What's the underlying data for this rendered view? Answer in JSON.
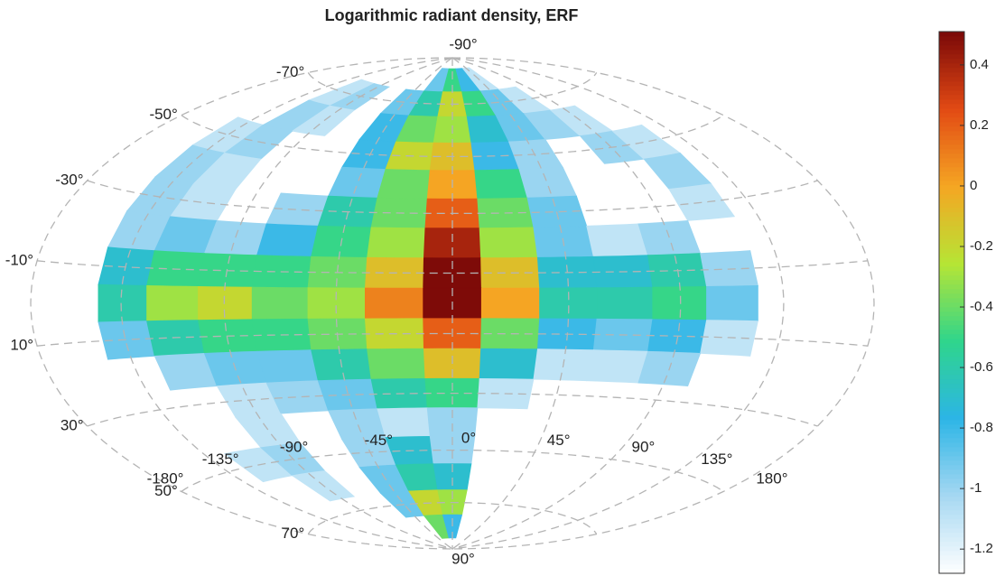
{
  "chart_data": {
    "type": "contour",
    "title": "Logarithmic radiant density, ERF",
    "projection": "hammer",
    "x": [
      -135,
      -112.5,
      -90,
      -67.5,
      -45,
      -22.5,
      0,
      22.5,
      45,
      67.5,
      90,
      112.5
    ],
    "y": [
      -80,
      -70,
      -60,
      -50,
      -40,
      -30,
      -20,
      -10,
      0,
      10,
      20,
      30,
      40,
      50,
      60,
      70,
      80
    ],
    "z": [
      [
        null,
        null,
        null,
        null,
        null,
        -0.9,
        -0.5,
        -0.8,
        -1.1,
        null,
        null,
        null
      ],
      [
        null,
        -1.1,
        -1.0,
        null,
        -0.9,
        -0.6,
        -0.2,
        -0.5,
        -0.9,
        -1.1,
        null,
        null
      ],
      [
        null,
        -1.0,
        -1.1,
        null,
        -0.8,
        -0.4,
        -0.3,
        -0.7,
        -0.9,
        -1.0,
        -1.1,
        null
      ],
      [
        -1.1,
        -1.0,
        null,
        null,
        -0.8,
        -0.2,
        -0.1,
        -0.8,
        -1.0,
        null,
        -1.0,
        -1.1
      ],
      [
        -1.0,
        -1.1,
        null,
        null,
        -0.9,
        -0.4,
        0.0,
        -0.5,
        -1.0,
        null,
        null,
        -1.0
      ],
      [
        -1.0,
        -1.1,
        null,
        -1.0,
        -0.6,
        -0.4,
        0.2,
        -0.4,
        -0.9,
        null,
        null,
        -1.1
      ],
      [
        -1.0,
        -0.9,
        -1.0,
        -0.8,
        -0.5,
        -0.3,
        0.4,
        -0.3,
        -0.9,
        -1.1,
        -1.0,
        null
      ],
      [
        -0.7,
        -0.5,
        -0.5,
        -0.5,
        -0.4,
        -0.1,
        0.5,
        -0.1,
        -0.7,
        -0.7,
        -0.6,
        -1.0
      ],
      [
        -0.6,
        -0.3,
        -0.2,
        -0.4,
        -0.3,
        0.1,
        0.5,
        0.0,
        -0.6,
        -0.6,
        -0.5,
        -0.9
      ],
      [
        -0.9,
        -0.6,
        -0.5,
        -0.5,
        -0.4,
        -0.2,
        0.2,
        -0.4,
        -0.8,
        -0.9,
        -0.8,
        -1.1
      ],
      [
        null,
        -1.0,
        -0.9,
        -0.9,
        -0.6,
        -0.4,
        -0.1,
        -0.7,
        -1.1,
        -1.1,
        -1.0,
        null
      ],
      [
        null,
        null,
        -1.1,
        -1.0,
        -0.9,
        -0.6,
        -0.5,
        -1.1,
        null,
        null,
        null,
        null
      ],
      [
        null,
        null,
        -1.1,
        null,
        -1.0,
        -1.1,
        -1.0,
        null,
        null,
        null,
        null,
        null
      ],
      [
        null,
        -1.1,
        -1.0,
        null,
        -1.0,
        -0.7,
        -1.0,
        null,
        null,
        null,
        null,
        null
      ],
      [
        null,
        null,
        -1.1,
        null,
        -0.9,
        -0.6,
        -0.7,
        null,
        null,
        null,
        null,
        null
      ],
      [
        null,
        null,
        null,
        null,
        -0.9,
        -0.2,
        -0.3,
        null,
        null,
        null,
        null,
        null
      ],
      [
        null,
        null,
        null,
        null,
        null,
        -0.4,
        -0.8,
        null,
        null,
        null,
        null,
        null
      ]
    ],
    "xlim": [
      -180,
      180
    ],
    "ylim": [
      -90,
      90
    ],
    "xticks": [
      {
        "value": -180,
        "label": "-180°"
      },
      {
        "value": -135,
        "label": "-135°"
      },
      {
        "value": -90,
        "label": "-90°"
      },
      {
        "value": -45,
        "label": "-45°"
      },
      {
        "value": 0,
        "label": "0°"
      },
      {
        "value": 45,
        "label": "45°"
      },
      {
        "value": 90,
        "label": "90°"
      },
      {
        "value": 135,
        "label": "135°"
      },
      {
        "value": 180,
        "label": "180°"
      }
    ],
    "yticks": [
      {
        "value": -90,
        "label": "-90°"
      },
      {
        "value": -70,
        "label": "-70°"
      },
      {
        "value": -50,
        "label": "-50°"
      },
      {
        "value": -30,
        "label": "-30°"
      },
      {
        "value": -10,
        "label": "-10°"
      },
      {
        "value": 10,
        "label": "10°"
      },
      {
        "value": 30,
        "label": "30°"
      },
      {
        "value": 50,
        "label": "50°"
      },
      {
        "value": 70,
        "label": "70°"
      },
      {
        "value": 90,
        "label": "90°"
      }
    ],
    "clim": [
      -1.28,
      0.51
    ],
    "cticks": [
      0.4,
      0.2,
      0,
      -0.2,
      -0.4,
      -0.6,
      -0.8,
      -1,
      -1.2
    ],
    "colormap": [
      "#ffffff",
      "#a6d8f2",
      "#2cb5e6",
      "#2fd58c",
      "#b6e535",
      "#f5a623",
      "#e24a14",
      "#7a0808"
    ],
    "grid": true
  }
}
